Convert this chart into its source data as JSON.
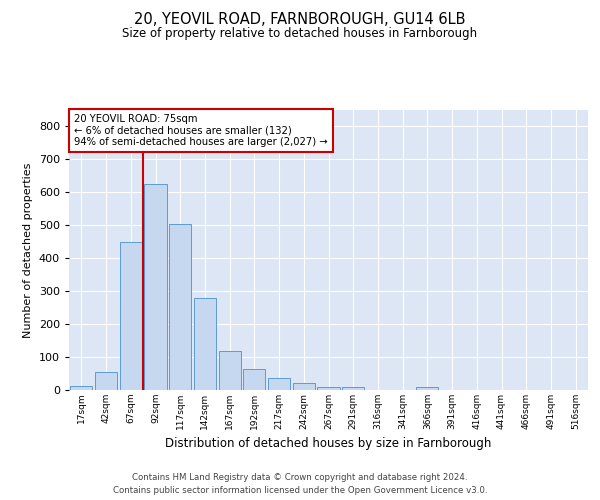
{
  "title1": "20, YEOVIL ROAD, FARNBOROUGH, GU14 6LB",
  "title2": "Size of property relative to detached houses in Farnborough",
  "xlabel": "Distribution of detached houses by size in Farnborough",
  "ylabel": "Number of detached properties",
  "bar_values": [
    12,
    55,
    450,
    625,
    503,
    280,
    117,
    63,
    35,
    20,
    10,
    8,
    0,
    0,
    8,
    0,
    0,
    0,
    0,
    0,
    0
  ],
  "bin_labels": [
    "17sqm",
    "42sqm",
    "67sqm",
    "92sqm",
    "117sqm",
    "142sqm",
    "167sqm",
    "192sqm",
    "217sqm",
    "242sqm",
    "267sqm",
    "291sqm",
    "316sqm",
    "341sqm",
    "366sqm",
    "391sqm",
    "416sqm",
    "441sqm",
    "466sqm",
    "491sqm",
    "516sqm"
  ],
  "bar_color": "#c5d8f0",
  "bar_edge_color": "#5b9bd5",
  "property_line_color": "#cc0000",
  "annotation_text": "20 YEOVIL ROAD: 75sqm\n← 6% of detached houses are smaller (132)\n94% of semi-detached houses are larger (2,027) →",
  "annotation_box_color": "#cc0000",
  "ylim": [
    0,
    850
  ],
  "yticks": [
    0,
    100,
    200,
    300,
    400,
    500,
    600,
    700,
    800
  ],
  "footer1": "Contains HM Land Registry data © Crown copyright and database right 2024.",
  "footer2": "Contains public sector information licensed under the Open Government Licence v3.0.",
  "fig_bg_color": "#ffffff",
  "plot_bg_color": "#dce6f5"
}
